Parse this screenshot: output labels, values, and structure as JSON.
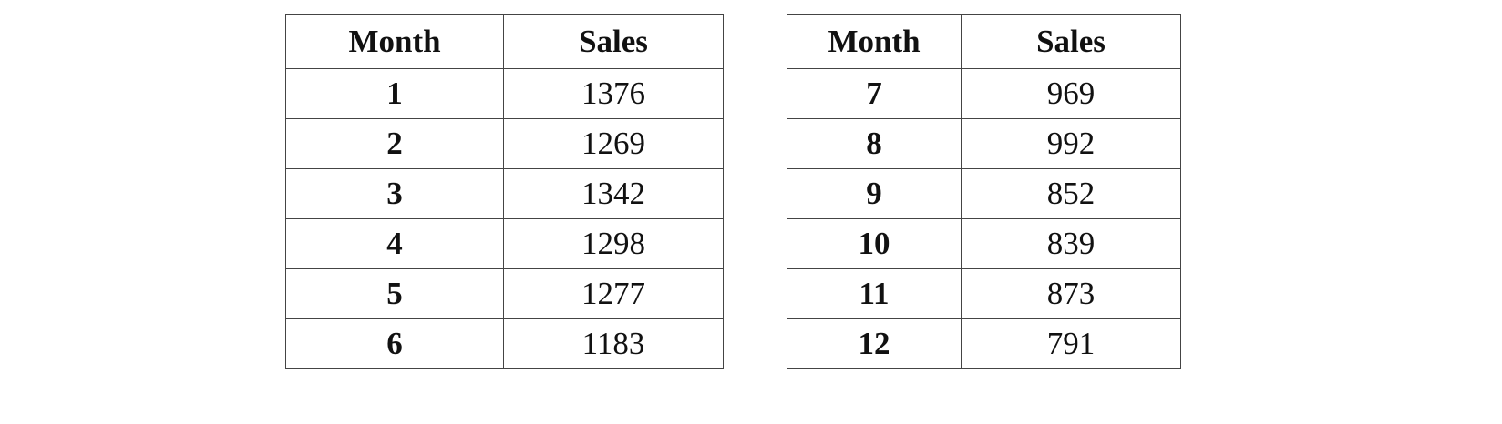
{
  "tables": [
    {
      "headers": [
        "Month",
        "Sales"
      ],
      "rows": [
        [
          "1",
          "1376"
        ],
        [
          "2",
          "1269"
        ],
        [
          "3",
          "1342"
        ],
        [
          "4",
          "1298"
        ],
        [
          "5",
          "1277"
        ],
        [
          "6",
          "1183"
        ]
      ]
    },
    {
      "headers": [
        "Month",
        "Sales"
      ],
      "rows": [
        [
          "7",
          "969"
        ],
        [
          "8",
          "992"
        ],
        [
          "9",
          "852"
        ],
        [
          "10",
          "839"
        ],
        [
          "11",
          "873"
        ],
        [
          "12",
          "791"
        ]
      ]
    }
  ]
}
